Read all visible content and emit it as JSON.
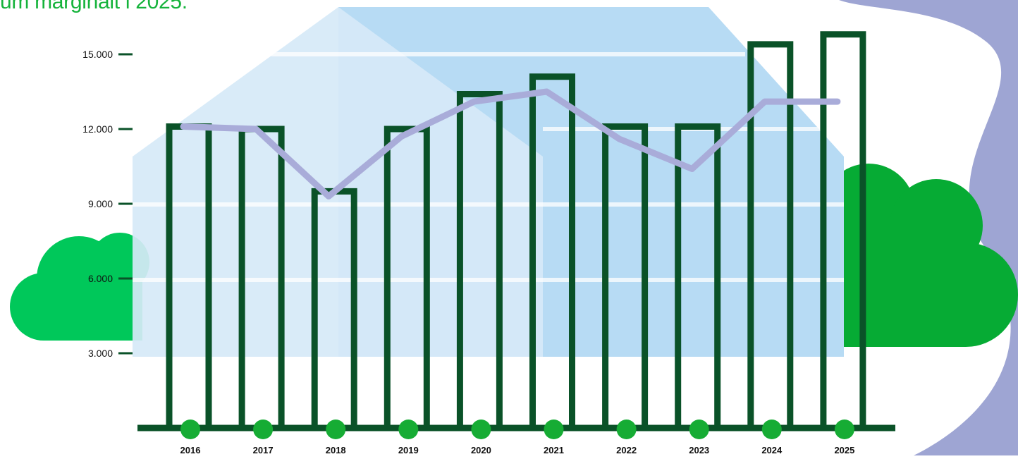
{
  "heading": "um marginalt i 2025.",
  "colors": {
    "bar_outline": "#0a5228",
    "line": "#a9acd9",
    "year_dot": "#16ac34",
    "cloud_left": "#00c85a",
    "cloud_right": "#06ab34",
    "house_front": "#d6e9f7",
    "house_back": "#b7dbf4",
    "swoosh": "#9ea5d3",
    "heading": "#15b33b"
  },
  "chart_data": {
    "type": "bar",
    "categories": [
      "2016",
      "2017",
      "2018",
      "2019",
      "2020",
      "2021",
      "2022",
      "2023",
      "2024",
      "2025"
    ],
    "series": [
      {
        "type": "bar",
        "values": [
          12100,
          12000,
          9500,
          12000,
          13400,
          14100,
          12100,
          12100,
          15400,
          15800
        ]
      },
      {
        "type": "line",
        "values": [
          12100,
          12000,
          9300,
          11700,
          13100,
          13500,
          11600,
          10400,
          13100,
          13100
        ]
      }
    ],
    "y_ticks": [
      3000,
      6000,
      9000,
      12000,
      15000
    ],
    "y_tick_labels": [
      "3.000",
      "6.000",
      "9.000",
      "12.000",
      "15.000"
    ],
    "ylim": [
      0,
      16000
    ],
    "grid": false,
    "legend": "none",
    "title": "",
    "xlabel": "",
    "ylabel": ""
  }
}
